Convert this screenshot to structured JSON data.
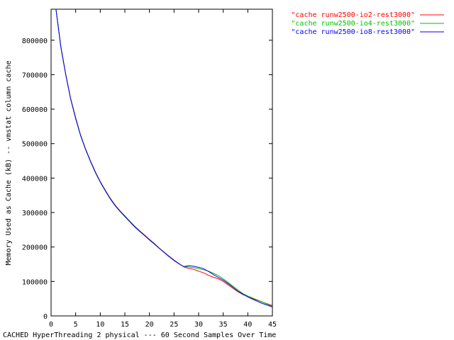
{
  "chart_data": {
    "type": "line",
    "xlabel": "CACHED HyperThreading 2 physical --- 60 Second Samples Over Time",
    "ylabel": "Memory Used as Cache (kB) -- vmstat column cache",
    "xlim": [
      0,
      45
    ],
    "ylim": [
      0,
      890000
    ],
    "x_ticks": [
      0,
      5,
      10,
      15,
      20,
      25,
      30,
      35,
      40,
      45
    ],
    "x_tick_labels": [
      "0",
      "5",
      "10",
      "15",
      "20",
      "25",
      "30",
      "35",
      "40",
      "45"
    ],
    "y_ticks": [
      0,
      100000,
      200000,
      300000,
      400000,
      500000,
      600000,
      700000,
      800000
    ],
    "y_tick_labels": [
      "0",
      "100000",
      "200000",
      "300000",
      "400000",
      "500000",
      "600000",
      "700000",
      "800000"
    ],
    "grid": false,
    "legend_position": "top-right outside",
    "series": [
      {
        "name": "\"cache runw2500-io2-rest3000\"",
        "color": "#ff0000",
        "x": [
          1,
          2,
          3,
          4,
          5,
          6,
          7,
          8,
          9,
          10,
          11,
          12,
          13,
          14,
          15,
          16,
          17,
          18,
          19,
          20,
          21,
          22,
          23,
          24,
          25,
          26,
          27,
          28,
          29,
          30,
          31,
          32,
          33,
          34,
          35,
          36,
          37,
          38,
          39,
          40,
          41,
          42,
          43,
          44,
          45
        ],
        "values": [
          895000,
          780000,
          700000,
          630000,
          575000,
          525000,
          485000,
          450000,
          418000,
          390000,
          365000,
          342000,
          322000,
          305000,
          290000,
          275000,
          260000,
          247000,
          235000,
          222000,
          210000,
          197000,
          185000,
          173000,
          162000,
          152000,
          142000,
          138000,
          135000,
          130000,
          125000,
          118000,
          112000,
          108000,
          100000,
          90000,
          80000,
          70000,
          62000,
          56000,
          50000,
          45000,
          40000,
          35000,
          30000
        ]
      },
      {
        "name": "\"cache runw2500-io4-rest3000\"",
        "color": "#00c000",
        "x": [
          1,
          2,
          3,
          4,
          5,
          6,
          7,
          8,
          9,
          10,
          11,
          12,
          13,
          14,
          15,
          16,
          17,
          18,
          19,
          20,
          21,
          22,
          23,
          24,
          25,
          26,
          27,
          28,
          29,
          30,
          31,
          32,
          33,
          34,
          35,
          36,
          37,
          38,
          39,
          40,
          41,
          42,
          43,
          44,
          45
        ],
        "values": [
          890000,
          778000,
          698000,
          628000,
          572000,
          523000,
          483000,
          448000,
          416000,
          388000,
          363000,
          340000,
          320000,
          303000,
          288000,
          273000,
          258000,
          245000,
          233000,
          220000,
          208000,
          196000,
          184000,
          172000,
          161000,
          151000,
          143000,
          142000,
          140000,
          137000,
          134000,
          130000,
          124000,
          117000,
          108000,
          97000,
          86000,
          75000,
          65000,
          58000,
          52000,
          46000,
          40000,
          34000,
          28000
        ]
      },
      {
        "name": "\"cache runw2500-io8-rest3000\"",
        "color": "#0000ff",
        "x": [
          1,
          2,
          3,
          4,
          5,
          6,
          7,
          8,
          9,
          10,
          11,
          12,
          13,
          14,
          15,
          16,
          17,
          18,
          19,
          20,
          21,
          22,
          23,
          24,
          25,
          26,
          27,
          28,
          29,
          30,
          31,
          32,
          33,
          34,
          35,
          36,
          37,
          38,
          39,
          40,
          41,
          42,
          43,
          44,
          45
        ],
        "values": [
          892000,
          779000,
          699000,
          629000,
          573000,
          524000,
          484000,
          449000,
          417000,
          389000,
          364000,
          341000,
          321000,
          304000,
          289000,
          274000,
          259000,
          246000,
          234000,
          221000,
          209000,
          196000,
          184000,
          172000,
          161000,
          151000,
          143000,
          146000,
          144000,
          141000,
          137000,
          129000,
          120000,
          112000,
          104000,
          94000,
          83000,
          72000,
          63000,
          55000,
          48000,
          42000,
          36000,
          31000,
          26000
        ]
      }
    ]
  }
}
